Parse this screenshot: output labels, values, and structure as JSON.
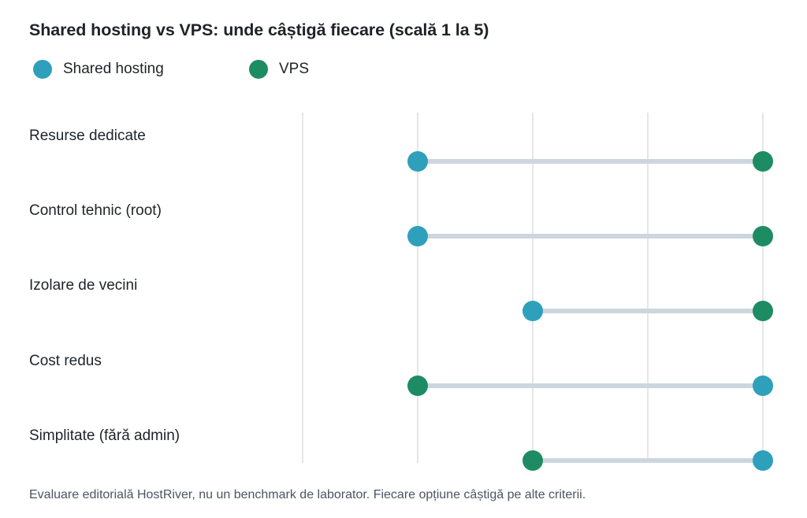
{
  "chart_data": {
    "type": "dumbbell",
    "title": "Shared hosting vs VPS: unde câștigă fiecare (scală 1 la 5)",
    "xlim": [
      1,
      5
    ],
    "grid": true,
    "legend_position": "top-left",
    "categories": [
      "Resurse dedicate",
      "Control tehnic (root)",
      "Izolare de vecini",
      "Cost redus",
      "Simplitate (fără admin)"
    ],
    "series": [
      {
        "name": "Shared hosting",
        "color": "#2fa0bb",
        "values": [
          2,
          2,
          3,
          5,
          5
        ]
      },
      {
        "name": "VPS",
        "color": "#1e8c63",
        "values": [
          5,
          5,
          5,
          2,
          3
        ]
      }
    ],
    "footnote": "Evaluare editorială HostRiver, nu un benchmark de laborator. Fiecare opțiune câștigă pe alte criterii."
  }
}
